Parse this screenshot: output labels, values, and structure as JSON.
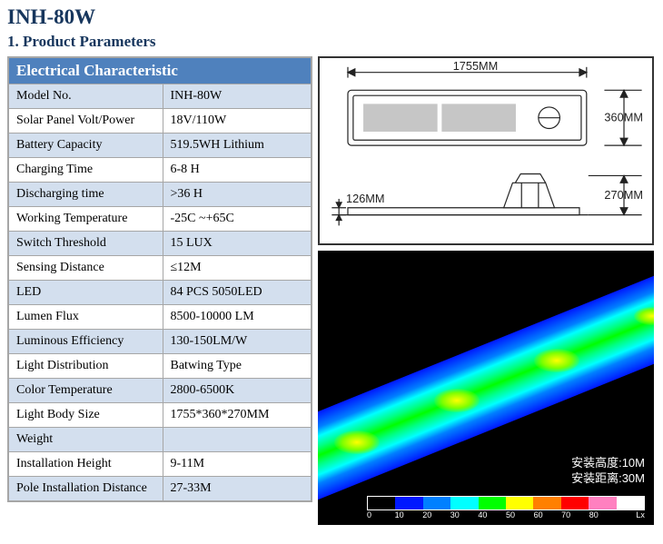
{
  "title": "INH-80W",
  "section": "1. Product Parameters",
  "table": {
    "header": "Electrical Characteristic",
    "rows": [
      {
        "label": "Model No.",
        "value": "INH-80W"
      },
      {
        "label": "Solar Panel Volt/Power",
        "value": "18V/110W"
      },
      {
        "label": "Battery Capacity",
        "value": "519.5WH Lithium"
      },
      {
        "label": "Charging Time",
        "value": "6-8 H"
      },
      {
        "label": "Discharging time",
        "value": ">36 H"
      },
      {
        "label": "Working Temperature",
        "value": "-25C ~+65C"
      },
      {
        "label": "Switch Threshold",
        "value": "15 LUX"
      },
      {
        "label": "Sensing Distance",
        "value": "≤12M"
      },
      {
        "label": "LED",
        "value": "84 PCS 5050LED"
      },
      {
        "label": "Lumen Flux",
        "value": "8500-10000 LM"
      },
      {
        "label": "Luminous Efficiency",
        "value": "130-150LM/W"
      },
      {
        "label": "Light Distribution",
        "value": "Batwing Type"
      },
      {
        "label": "Color Temperature",
        "value": "2800-6500K"
      },
      {
        "label": "Light Body Size",
        "value": "1755*360*270MM"
      },
      {
        "label": "Weight",
        "value": ""
      },
      {
        "label": "Installation Height",
        "value": "9-11M"
      },
      {
        "label": "Pole Installation Distance",
        "value": "27-33M"
      }
    ]
  },
  "diagram": {
    "width": "1755MM",
    "depth": "360MM",
    "thickness": "126MM",
    "height": "270MM"
  },
  "heatmap": {
    "install_height_label": "安装高度:",
    "install_height_value": "10M",
    "install_dist_label": "安装距离:",
    "install_dist_value": "30M",
    "colorbar_colors": [
      "#000000",
      "#0018ff",
      "#0080ff",
      "#00ffff",
      "#00ff00",
      "#ffff00",
      "#ff8000",
      "#ff0000",
      "#ff80c0",
      "#ffffff"
    ],
    "colorbar_ticks": [
      "0",
      "10",
      "20",
      "30",
      "40",
      "50",
      "60",
      "70",
      "80",
      "Lx"
    ]
  }
}
